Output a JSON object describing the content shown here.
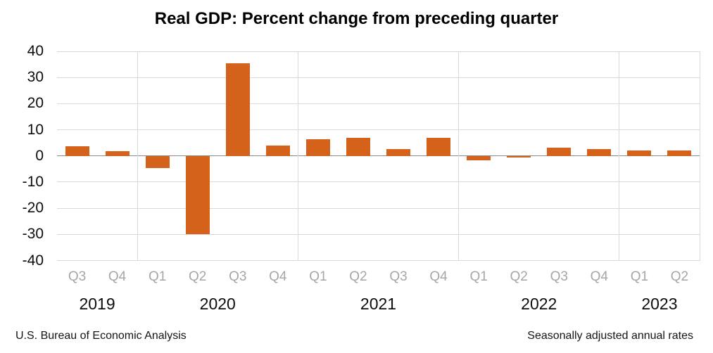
{
  "title": "Real GDP: Percent change from preceding quarter",
  "footer": {
    "left": "U.S. Bureau of Economic Analysis",
    "right": "Seasonally adjusted annual rates"
  },
  "colors": {
    "bar": "#d5621a",
    "gridline": "#d9d9d9",
    "zero_axis": "#8a8a8a",
    "quarter_label": "#a6a6a6",
    "text": "#0d0d0d"
  },
  "chart_data": {
    "type": "bar",
    "title": "Real GDP: Percent change from preceding quarter",
    "categories": [
      "Q3",
      "Q4",
      "Q1",
      "Q2",
      "Q3",
      "Q4",
      "Q1",
      "Q2",
      "Q3",
      "Q4",
      "Q1",
      "Q2",
      "Q3",
      "Q4",
      "Q1",
      "Q2"
    ],
    "groups": [
      {
        "year": "2019",
        "count": 2
      },
      {
        "year": "2020",
        "count": 4
      },
      {
        "year": "2021",
        "count": 4
      },
      {
        "year": "2022",
        "count": 4
      },
      {
        "year": "2023",
        "count": 2
      }
    ],
    "values": [
      3.6,
      1.8,
      -4.6,
      -29.9,
      35.3,
      3.9,
      6.3,
      7.0,
      2.7,
      7.0,
      -1.6,
      -0.6,
      3.2,
      2.6,
      2.0,
      2.1
    ],
    "xlabel": "",
    "ylabel": "",
    "ylim": [
      -40,
      40
    ],
    "yticks": [
      40,
      30,
      20,
      10,
      0,
      -10,
      -20,
      -30,
      -40
    ],
    "grid": "horizontal gridlines plus vertical year-group separators",
    "legend": "none",
    "bar_color": "#d5621a",
    "source_note": "U.S. Bureau of Economic Analysis",
    "adjustment_note": "Seasonally adjusted annual rates"
  }
}
